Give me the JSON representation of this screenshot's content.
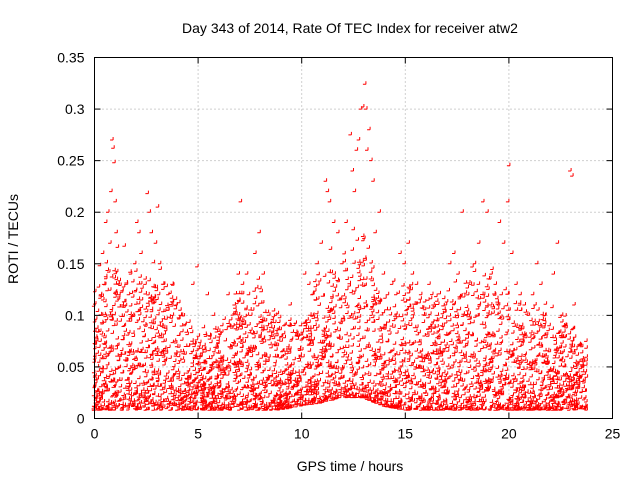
{
  "chart_data": {
    "type": "scatter",
    "title": "Day 343 of 2014, Rate Of TEC Index for receiver atw2",
    "xlabel": "GPS time / hours",
    "ylabel": "ROTI / TECUs",
    "xlim": [
      0,
      25
    ],
    "ylim": [
      0,
      0.35
    ],
    "xticks": [
      0,
      5,
      10,
      15,
      20,
      25
    ],
    "yticks": [
      0,
      0.05,
      0.1,
      0.15,
      0.2,
      0.25,
      0.3,
      0.35
    ],
    "xtick_labels": [
      "0",
      "5",
      "10",
      "15",
      "20",
      "25"
    ],
    "ytick_labels": [
      "0",
      "0.05",
      "0.1",
      "0.15",
      "0.2",
      "0.25",
      "0.3",
      "0.35"
    ],
    "grid": true,
    "marker": "+",
    "color": "#ff0000",
    "series": [
      {
        "points": [
          [
            0.05,
            0.03
          ],
          [
            0.1,
            0.015
          ],
          [
            0.2,
            0.05
          ],
          [
            0.3,
            0.148
          ],
          [
            0.35,
            0.12
          ],
          [
            0.4,
            0.1
          ],
          [
            0.45,
            0.16
          ],
          [
            0.5,
            0.13
          ],
          [
            0.6,
            0.19
          ],
          [
            0.7,
            0.2
          ],
          [
            0.8,
            0.17
          ],
          [
            0.85,
            0.22
          ],
          [
            0.9,
            0.27
          ],
          [
            0.95,
            0.262
          ],
          [
            1.0,
            0.248
          ],
          [
            1.05,
            0.21
          ],
          [
            1.1,
            0.18
          ],
          [
            1.2,
            0.13
          ],
          [
            1.3,
            0.06
          ],
          [
            1.4,
            0.11
          ],
          [
            1.5,
            0.09
          ],
          [
            1.6,
            0.13
          ],
          [
            1.7,
            0.12
          ],
          [
            1.8,
            0.14
          ],
          [
            1.9,
            0.1
          ],
          [
            2.0,
            0.15
          ],
          [
            2.1,
            0.19
          ],
          [
            2.2,
            0.18
          ],
          [
            2.3,
            0.16
          ],
          [
            2.5,
            0.13
          ],
          [
            2.6,
            0.218
          ],
          [
            2.7,
            0.2
          ],
          [
            2.8,
            0.18
          ],
          [
            3.0,
            0.17
          ],
          [
            3.1,
            0.205
          ],
          [
            3.2,
            0.15
          ],
          [
            3.4,
            0.13
          ],
          [
            3.6,
            0.12
          ],
          [
            3.8,
            0.13
          ],
          [
            4.0,
            0.11
          ],
          [
            4.2,
            0.1
          ],
          [
            4.4,
            0.09
          ],
          [
            4.6,
            0.07
          ],
          [
            4.8,
            0.13
          ],
          [
            5.0,
            0.147
          ],
          [
            5.2,
            0.06
          ],
          [
            5.5,
            0.12
          ],
          [
            5.8,
            0.1
          ],
          [
            6.0,
            0.05
          ],
          [
            6.2,
            0.09
          ],
          [
            6.5,
            0.12
          ],
          [
            6.8,
            0.11
          ],
          [
            7.0,
            0.14
          ],
          [
            7.1,
            0.21
          ],
          [
            7.2,
            0.13
          ],
          [
            7.4,
            0.14
          ],
          [
            7.6,
            0.1
          ],
          [
            7.8,
            0.16
          ],
          [
            8.0,
            0.18
          ],
          [
            8.2,
            0.14
          ],
          [
            8.4,
            0.09
          ],
          [
            8.8,
            0.1
          ],
          [
            9.2,
            0.09
          ],
          [
            9.5,
            0.11
          ],
          [
            9.8,
            0.08
          ],
          [
            10.0,
            0.09
          ],
          [
            10.2,
            0.14
          ],
          [
            10.4,
            0.13
          ],
          [
            10.6,
            0.1
          ],
          [
            10.8,
            0.15
          ],
          [
            11.0,
            0.17
          ],
          [
            11.2,
            0.23
          ],
          [
            11.3,
            0.22
          ],
          [
            11.4,
            0.21
          ],
          [
            11.6,
            0.19
          ],
          [
            11.8,
            0.18
          ],
          [
            12.0,
            0.15
          ],
          [
            12.2,
            0.19
          ],
          [
            12.4,
            0.275
          ],
          [
            12.5,
            0.24
          ],
          [
            12.6,
            0.22
          ],
          [
            12.7,
            0.26
          ],
          [
            12.8,
            0.27
          ],
          [
            12.9,
            0.3
          ],
          [
            13.0,
            0.302
          ],
          [
            13.1,
            0.324
          ],
          [
            13.15,
            0.3
          ],
          [
            13.2,
            0.26
          ],
          [
            13.3,
            0.28
          ],
          [
            13.4,
            0.25
          ],
          [
            13.5,
            0.23
          ],
          [
            13.6,
            0.18
          ],
          [
            13.8,
            0.2
          ],
          [
            14.0,
            0.14
          ],
          [
            14.2,
            0.12
          ],
          [
            14.4,
            0.13
          ],
          [
            14.6,
            0.12
          ],
          [
            14.8,
            0.16
          ],
          [
            15.0,
            0.15
          ],
          [
            15.2,
            0.17
          ],
          [
            15.4,
            0.14
          ],
          [
            15.6,
            0.13
          ],
          [
            15.8,
            0.12
          ],
          [
            16.0,
            0.1
          ],
          [
            16.2,
            0.13
          ],
          [
            16.4,
            0.11
          ],
          [
            16.6,
            0.1
          ],
          [
            16.8,
            0.09
          ],
          [
            17.0,
            0.11
          ],
          [
            17.2,
            0.15
          ],
          [
            17.4,
            0.16
          ],
          [
            17.6,
            0.14
          ],
          [
            17.8,
            0.2
          ],
          [
            18.0,
            0.1
          ],
          [
            18.2,
            0.13
          ],
          [
            18.4,
            0.15
          ],
          [
            18.6,
            0.17
          ],
          [
            18.8,
            0.21
          ],
          [
            19.0,
            0.2
          ],
          [
            19.2,
            0.14
          ],
          [
            19.4,
            0.13
          ],
          [
            19.6,
            0.19
          ],
          [
            19.8,
            0.17
          ],
          [
            20.0,
            0.21
          ],
          [
            20.05,
            0.245
          ],
          [
            20.2,
            0.16
          ],
          [
            20.4,
            0.13
          ],
          [
            20.6,
            0.12
          ],
          [
            20.8,
            0.11
          ],
          [
            21.0,
            0.1
          ],
          [
            21.2,
            0.12
          ],
          [
            21.4,
            0.15
          ],
          [
            21.6,
            0.13
          ],
          [
            21.8,
            0.1
          ],
          [
            22.0,
            0.09
          ],
          [
            22.2,
            0.14
          ],
          [
            22.4,
            0.17
          ],
          [
            22.6,
            0.1
          ],
          [
            22.8,
            0.09
          ],
          [
            23.0,
            0.24
          ],
          [
            23.1,
            0.235
          ],
          [
            23.2,
            0.11
          ],
          [
            23.4,
            0.07
          ],
          [
            23.6,
            0.05
          ],
          [
            23.8,
            0.04
          ]
        ],
        "dense_envelope": {
          "x": [
            0,
            1,
            2,
            3,
            4,
            5,
            6,
            7,
            8,
            9,
            10,
            11,
            12,
            13,
            14,
            15,
            16,
            17,
            18,
            19,
            20,
            21,
            22,
            23,
            23.8
          ],
          "upper": [
            0.1,
            0.14,
            0.12,
            0.12,
            0.1,
            0.07,
            0.07,
            0.1,
            0.11,
            0.08,
            0.08,
            0.12,
            0.14,
            0.15,
            0.1,
            0.11,
            0.1,
            0.1,
            0.12,
            0.12,
            0.1,
            0.09,
            0.09,
            0.08,
            0.06
          ],
          "lower": [
            0.008,
            0.008,
            0.008,
            0.008,
            0.008,
            0.008,
            0.008,
            0.008,
            0.008,
            0.008,
            0.012,
            0.015,
            0.02,
            0.02,
            0.012,
            0.008,
            0.008,
            0.008,
            0.008,
            0.008,
            0.008,
            0.008,
            0.008,
            0.008,
            0.008
          ]
        }
      }
    ]
  }
}
